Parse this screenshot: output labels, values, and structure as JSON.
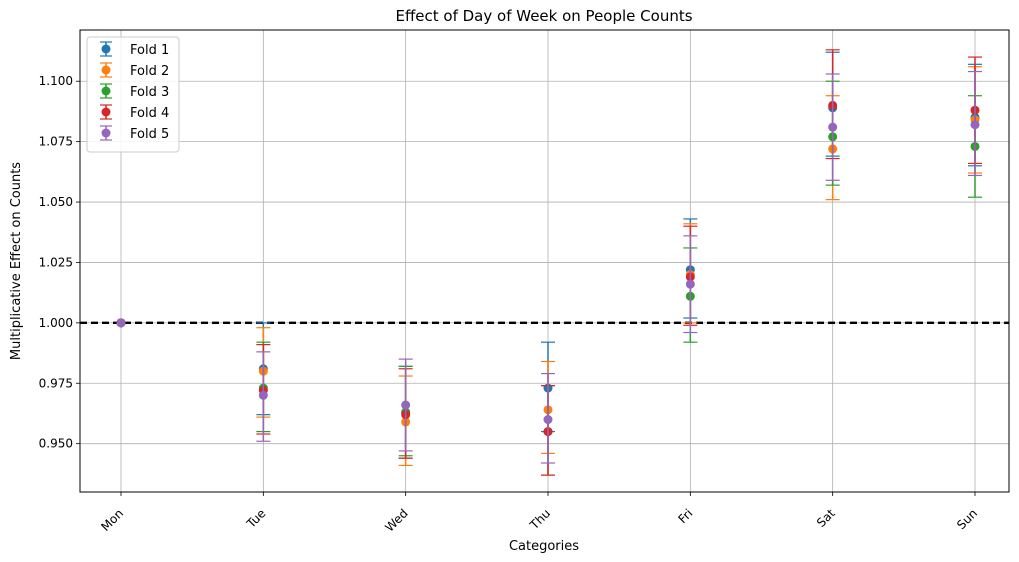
{
  "chart_data": {
    "type": "scatter",
    "title": "Effect of Day of Week on People Counts",
    "xlabel": "Categories",
    "ylabel": "Multiplicative Effect on Counts",
    "categories": [
      "Mon",
      "Tue",
      "Wed",
      "Thu",
      "Fri",
      "Sat",
      "Sun"
    ],
    "ylim": [
      0.93,
      1.1212
    ],
    "yticks": [
      "0.950",
      "0.975",
      "1.000",
      "1.025",
      "1.050",
      "1.075",
      "1.100"
    ],
    "ytick_values": [
      0.95,
      0.975,
      1.0,
      1.025,
      1.05,
      1.075,
      1.1
    ],
    "reference_line": 1.0,
    "grid": true,
    "legend_position": "upper-left",
    "series": [
      {
        "name": "Fold 1",
        "color": "#1f77b4",
        "values": [
          1.0,
          0.981,
          0.963,
          0.973,
          1.022,
          1.089,
          1.085
        ],
        "lower": [
          1.0,
          0.962,
          0.944,
          0.955,
          1.002,
          1.069,
          1.065
        ],
        "upper": [
          1.0,
          1.0,
          0.982,
          0.992,
          1.043,
          1.112,
          1.107
        ]
      },
      {
        "name": "Fold 2",
        "color": "#ff7f0e",
        "values": [
          1.0,
          0.98,
          0.959,
          0.964,
          1.02,
          1.072,
          1.084
        ],
        "lower": [
          1.0,
          0.961,
          0.941,
          0.946,
          1.0,
          1.051,
          1.062
        ],
        "upper": [
          1.0,
          0.998,
          0.978,
          0.984,
          1.041,
          1.094,
          1.106
        ]
      },
      {
        "name": "Fold 3",
        "color": "#2ca02c",
        "values": [
          1.0,
          0.973,
          0.963,
          0.955,
          1.011,
          1.077,
          1.073
        ],
        "lower": [
          1.0,
          0.955,
          0.945,
          0.937,
          0.992,
          1.057,
          1.052
        ],
        "upper": [
          1.0,
          0.992,
          0.982,
          0.974,
          1.031,
          1.1,
          1.094
        ]
      },
      {
        "name": "Fold 4",
        "color": "#d62728",
        "values": [
          1.0,
          0.972,
          0.962,
          0.955,
          1.019,
          1.09,
          1.088
        ],
        "lower": [
          1.0,
          0.954,
          0.944,
          0.937,
          0.999,
          1.068,
          1.066
        ],
        "upper": [
          1.0,
          0.991,
          0.981,
          0.974,
          1.04,
          1.113,
          1.11
        ]
      },
      {
        "name": "Fold 5",
        "color": "#9467bd",
        "values": [
          1.0,
          0.97,
          0.966,
          0.96,
          1.016,
          1.081,
          1.082
        ],
        "lower": [
          1.0,
          0.951,
          0.947,
          0.942,
          0.996,
          1.059,
          1.061
        ],
        "upper": [
          1.0,
          0.988,
          0.985,
          0.979,
          1.036,
          1.103,
          1.104
        ]
      }
    ]
  }
}
